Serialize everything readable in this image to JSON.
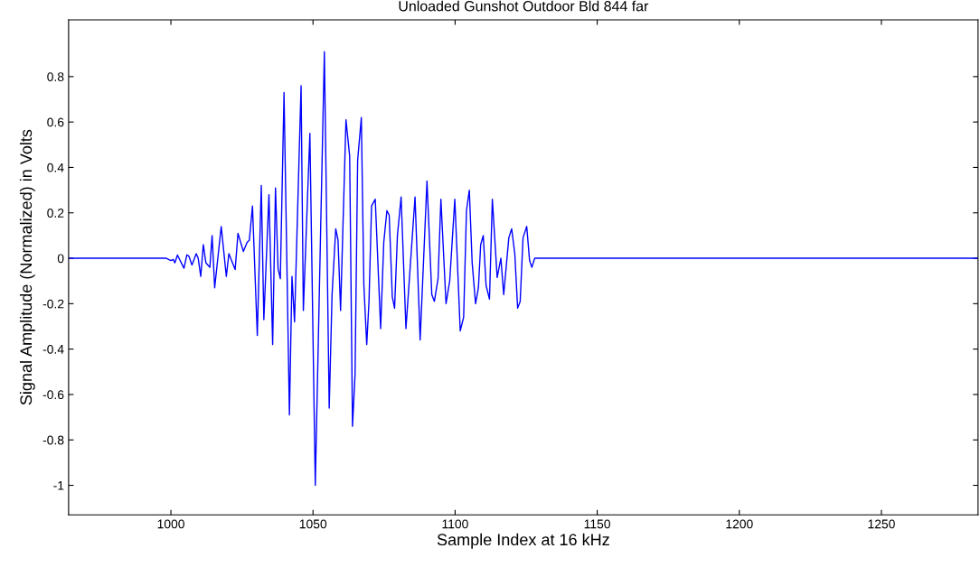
{
  "chart_data": {
    "type": "line",
    "title": "Unloaded Gunshot Outdoor Bld 844 far",
    "xlabel": "Sample Index at 16 kHz",
    "ylabel": "Signal Amplitude (Normalized) in Volts",
    "series": [
      {
        "color": "#0000ff",
        "x": [
          964,
          998.4,
          1000,
          1000.8,
          1001.4,
          1002.3,
          1004.6,
          1005.6,
          1006.3,
          1007.4,
          1008.9,
          1009.6,
          1010.5,
          1011.4,
          1012.3,
          1013.7,
          1014.5,
          1015.4,
          1017.7,
          1019.5,
          1020.4,
          1022.6,
          1023.6,
          1025.5,
          1026.8,
          1027.6,
          1028.7,
          1030.4,
          1031.8,
          1032.7,
          1034.5,
          1035.8,
          1036.8,
          1037.7,
          1038.5,
          1039.8,
          1041.7,
          1042.6,
          1043.5,
          1045.8,
          1046.6,
          1048.9,
          1050.8,
          1054.0,
          1055.7,
          1056.7,
          1058.0,
          1058.8,
          1059.7,
          1061.6,
          1062.9,
          1063.9,
          1064.8,
          1065.7,
          1067.0,
          1067.9,
          1068.9,
          1069.7,
          1070.6,
          1071.9,
          1073.8,
          1074.9,
          1076.0,
          1076.8,
          1077.9,
          1078.7,
          1079.7,
          1081.0,
          1082.7,
          1085.9,
          1087.7,
          1090.1,
          1091.8,
          1092.7,
          1094.0,
          1095.0,
          1096.8,
          1098.1,
          1099.9,
          1101.8,
          1103.0,
          1104.0,
          1105.0,
          1106.0,
          1107.2,
          1108.2,
          1109.0,
          1109.9,
          1110.9,
          1112.1,
          1113.1,
          1114.8,
          1116.1,
          1117.1,
          1118.9,
          1119.9,
          1121.0,
          1122.0,
          1122.9,
          1123.9,
          1125.2,
          1126.2,
          1127.0,
          1128.0,
          1284
        ],
        "values": [
          0,
          0,
          -0.01,
          -0.005,
          -0.02,
          0.014,
          -0.044,
          0.015,
          0.01,
          -0.03,
          0.02,
          0.0,
          -0.08,
          0.06,
          -0.02,
          -0.04,
          0.1,
          -0.13,
          0.14,
          -0.08,
          0.02,
          -0.05,
          0.11,
          0.03,
          0.07,
          0.08,
          0.23,
          -0.34,
          0.32,
          -0.27,
          0.28,
          -0.38,
          0.31,
          -0.045,
          -0.09,
          0.73,
          -0.69,
          -0.08,
          -0.28,
          0.76,
          -0.23,
          0.55,
          -1.0,
          0.91,
          -0.66,
          -0.16,
          0.13,
          0.08,
          -0.23,
          0.61,
          0.45,
          -0.74,
          -0.51,
          0.43,
          0.62,
          -0.12,
          -0.38,
          -0.19,
          0.23,
          0.26,
          -0.31,
          0.07,
          0.21,
          0.19,
          -0.17,
          -0.22,
          0.1,
          0.27,
          -0.31,
          0.27,
          -0.36,
          0.34,
          -0.16,
          -0.19,
          -0.09,
          0.26,
          -0.2,
          -0.1,
          0.26,
          -0.32,
          -0.26,
          0.21,
          0.3,
          -0.02,
          -0.2,
          -0.13,
          0.06,
          0.1,
          -0.12,
          -0.18,
          0.26,
          -0.085,
          0.0,
          -0.16,
          0.09,
          0.13,
          0.02,
          -0.22,
          -0.19,
          0.09,
          0.14,
          -0.01,
          -0.04,
          0,
          0
        ]
      }
    ],
    "xlim": [
      964,
      1284
    ],
    "xticks": [
      1000,
      1050,
      1100,
      1150,
      1200,
      1250
    ],
    "ylim": [
      -1.13,
      1.05
    ],
    "yticks": [
      -1,
      -0.8,
      -0.6,
      -0.4,
      -0.2,
      0,
      0.2,
      0.4,
      0.6,
      0.8
    ]
  }
}
